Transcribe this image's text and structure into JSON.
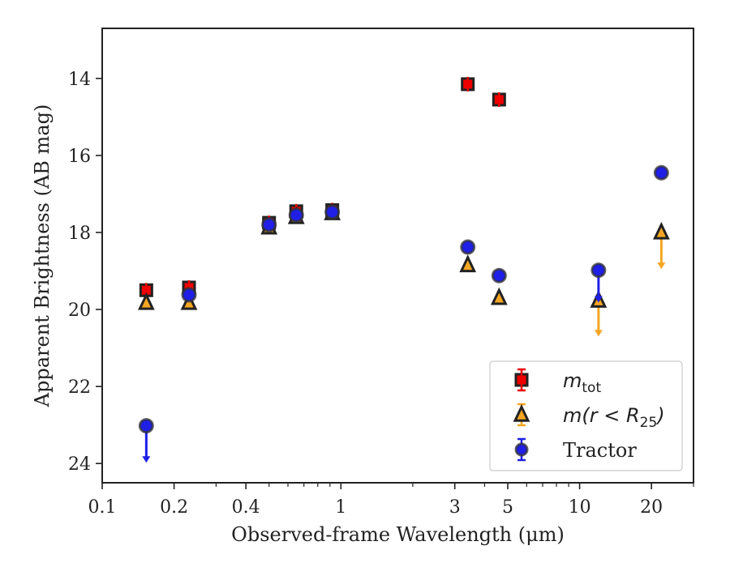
{
  "chart_data": {
    "type": "scatter",
    "xscale": "log",
    "xlim": [
      0.1,
      30
    ],
    "ylim": [
      24.5,
      12.7
    ],
    "y_inverted": true,
    "xlabel": "Observed-frame Wavelength (μm)",
    "ylabel": "Apparent Brightness (AB mag)",
    "xticks": [
      {
        "value": 0.1,
        "label": "0.1"
      },
      {
        "value": 0.2,
        "label": "0.2"
      },
      {
        "value": 0.4,
        "label": "0.4"
      },
      {
        "value": 1,
        "label": "1"
      },
      {
        "value": 3,
        "label": "3"
      },
      {
        "value": 5,
        "label": "5"
      },
      {
        "value": 10,
        "label": "10"
      },
      {
        "value": 20,
        "label": "20"
      }
    ],
    "yticks": [
      {
        "value": 14,
        "label": "14"
      },
      {
        "value": 16,
        "label": "16"
      },
      {
        "value": 18,
        "label": "18"
      },
      {
        "value": 20,
        "label": "20"
      },
      {
        "value": 22,
        "label": "22"
      },
      {
        "value": 24,
        "label": "24"
      }
    ],
    "legend_position": "lower right",
    "series": [
      {
        "name": "m_tot",
        "legend_main": "m",
        "legend_sub": "tot",
        "marker": "square",
        "color": "#ee0000",
        "edge_color": "#222222",
        "points": [
          {
            "x": 0.153,
            "y": 19.5
          },
          {
            "x": 0.231,
            "y": 19.43
          },
          {
            "x": 0.5,
            "y": 17.75
          },
          {
            "x": 0.65,
            "y": 17.45
          },
          {
            "x": 0.92,
            "y": 17.42
          },
          {
            "x": 3.4,
            "y": 14.15
          },
          {
            "x": 4.6,
            "y": 14.55
          }
        ]
      },
      {
        "name": "m(r < R25)",
        "legend_main": "m(r < R",
        "legend_sub": "25",
        "legend_tail": ")",
        "marker": "triangle",
        "color": "#f5a623",
        "edge_color": "#222222",
        "points": [
          {
            "x": 0.153,
            "y": 19.83
          },
          {
            "x": 0.231,
            "y": 19.83
          },
          {
            "x": 0.5,
            "y": 17.87
          },
          {
            "x": 0.65,
            "y": 17.6
          },
          {
            "x": 0.92,
            "y": 17.5
          },
          {
            "x": 3.4,
            "y": 18.85
          },
          {
            "x": 4.6,
            "y": 19.7
          },
          {
            "x": 12.0,
            "y": 19.77,
            "upper_limit_to": 20.7
          },
          {
            "x": 22.0,
            "y": 18.0,
            "upper_limit_to": 18.95
          }
        ]
      },
      {
        "name": "Tractor",
        "legend_main": "Tractor",
        "marker": "circle",
        "color": "#1f1fe6",
        "edge_color": "#333333",
        "points": [
          {
            "x": 0.153,
            "y": 23.02,
            "upper_limit_to": 23.98
          },
          {
            "x": 0.231,
            "y": 19.62
          },
          {
            "x": 0.5,
            "y": 17.8
          },
          {
            "x": 0.65,
            "y": 17.55
          },
          {
            "x": 0.92,
            "y": 17.47
          },
          {
            "x": 3.4,
            "y": 18.38
          },
          {
            "x": 4.6,
            "y": 19.12
          },
          {
            "x": 12.0,
            "y": 18.98,
            "upper_limit_to": 19.82
          },
          {
            "x": 22.0,
            "y": 16.45
          }
        ]
      }
    ]
  }
}
